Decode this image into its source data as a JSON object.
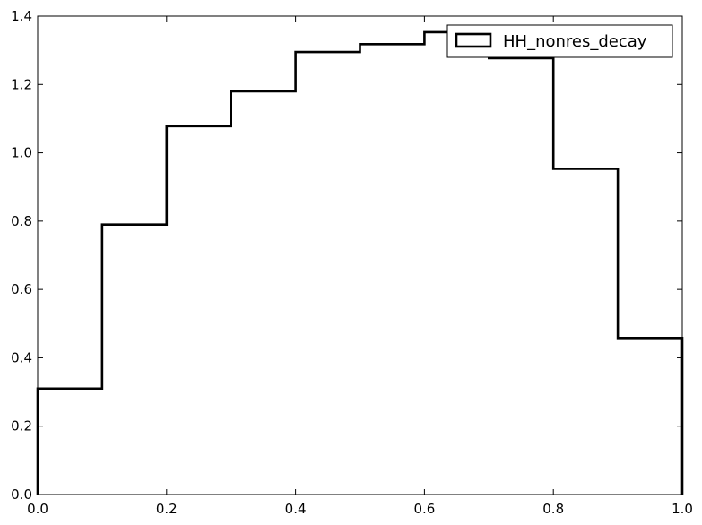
{
  "chart_data": {
    "type": "step-histogram",
    "title": "",
    "xlabel": "",
    "ylabel": "",
    "xlim": [
      0.0,
      1.0
    ],
    "ylim": [
      0.0,
      1.4
    ],
    "grid": false,
    "legend_position": "top-right",
    "xticks": [
      "0.0",
      "0.2",
      "0.4",
      "0.6",
      "0.8",
      "1.0"
    ],
    "yticks": [
      "0.0",
      "0.2",
      "0.4",
      "0.6",
      "0.8",
      "1.0",
      "1.2",
      "1.4"
    ],
    "bin_edges": [
      0.0,
      0.1,
      0.2,
      0.3,
      0.4,
      0.5,
      0.6,
      0.7,
      0.8,
      0.9,
      1.0
    ],
    "series": [
      {
        "name": "HH_nonres_decay",
        "color": "#000000",
        "values": [
          0.31,
          0.79,
          1.078,
          1.18,
          1.295,
          1.318,
          1.353,
          1.277,
          0.953,
          0.458
        ]
      }
    ]
  }
}
